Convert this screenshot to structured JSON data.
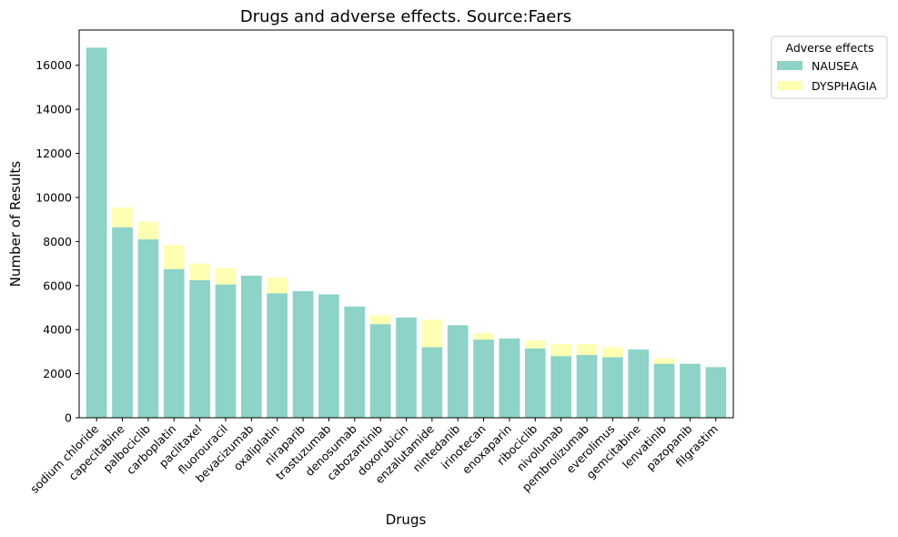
{
  "chart_data": {
    "type": "bar",
    "stacked": true,
    "title": "Drugs and adverse effects. Source:Faers",
    "xlabel": "Drugs",
    "ylabel": "Number of Results",
    "ylim": [
      0,
      17600
    ],
    "yticks": [
      0,
      2000,
      4000,
      6000,
      8000,
      10000,
      12000,
      14000,
      16000
    ],
    "grid": false,
    "categories": [
      "sodium chloride",
      "capecitabine",
      "palbociclib",
      "carboplatin",
      "paclitaxel",
      "fluorouracil",
      "bevacizumab",
      "oxaliplatin",
      "niraparib",
      "trastuzumab",
      "denosumab",
      "cabozantinib",
      "doxorubicin",
      "enzalutamide",
      "nintedanib",
      "irinotecan",
      "enoxaparin",
      "ribociclib",
      "nivolumab",
      "pembrolizumab",
      "everolimus",
      "gemcitabine",
      "lenvatinib",
      "pazopanib",
      "filgrastim"
    ],
    "series": [
      {
        "name": "NAUSEA",
        "color": "#8dd3c7",
        "values": [
          16800,
          8650,
          8100,
          6750,
          6250,
          6050,
          6450,
          5650,
          5750,
          5600,
          5050,
          4250,
          4550,
          3200,
          4200,
          3550,
          3600,
          3150,
          2800,
          2850,
          2750,
          3100,
          2450,
          2450,
          2300
        ]
      },
      {
        "name": "DYSPHAGIA",
        "color": "#ffffb3",
        "values": [
          0,
          900,
          800,
          1100,
          750,
          750,
          0,
          700,
          0,
          0,
          0,
          400,
          0,
          1250,
          0,
          300,
          0,
          350,
          550,
          500,
          450,
          0,
          250,
          0,
          0
        ]
      }
    ],
    "legend": {
      "title": "Adverse effects",
      "placement": "outside-top-right"
    }
  }
}
